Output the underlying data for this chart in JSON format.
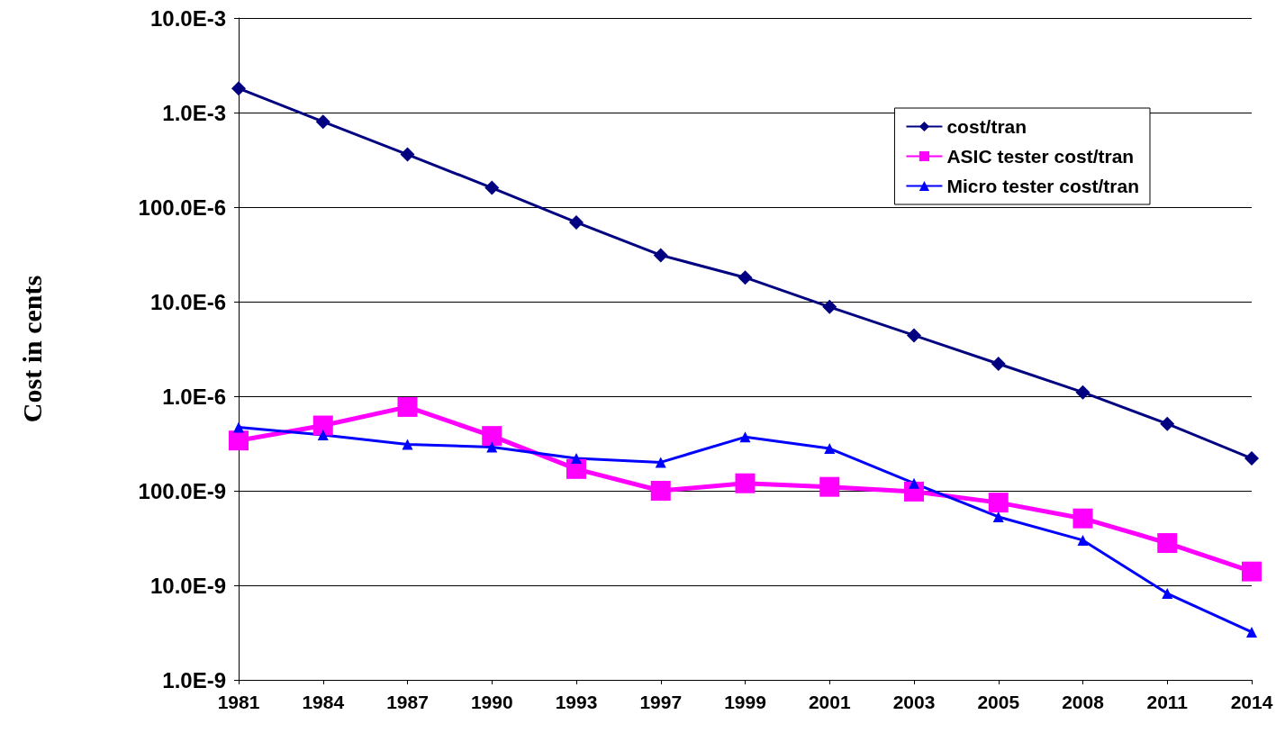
{
  "chart_data": {
    "type": "line",
    "ylabel": "Cost in cents",
    "log": "y",
    "grid": "y",
    "legend": "top right",
    "categories": [
      "1981",
      "1984",
      "1987",
      "1990",
      "1993",
      "1997",
      "1999",
      "2001",
      "2003",
      "2005",
      "2008",
      "2011",
      "2014"
    ],
    "ylim": [
      1e-09,
      0.01
    ],
    "yticks": [
      {
        "value": 1e-09,
        "label": "1.0E-9"
      },
      {
        "value": 1e-08,
        "label": "10.0E-9"
      },
      {
        "value": 1e-07,
        "label": "100.0E-9"
      },
      {
        "value": 1e-06,
        "label": "1.0E-6"
      },
      {
        "value": 1e-05,
        "label": "10.0E-6"
      },
      {
        "value": 0.0001,
        "label": "100.0E-6"
      },
      {
        "value": 0.001,
        "label": "1.0E-3"
      },
      {
        "value": 0.01,
        "label": "10.0E-3"
      }
    ],
    "series": [
      {
        "name": "cost/tran",
        "color": "#000080",
        "marker": "diamond",
        "values": [
          0.0018,
          0.0008,
          0.00036,
          0.00016,
          6.9e-05,
          3.1e-05,
          1.8e-05,
          8.8e-06,
          4.4e-06,
          2.2e-06,
          1.1e-06,
          5.1e-07,
          2.2e-07
        ]
      },
      {
        "name": "ASIC tester cost/tran",
        "color": "#ff00ff",
        "marker": "square",
        "values": [
          3.4e-07,
          4.9e-07,
          7.7e-07,
          3.8e-07,
          1.7e-07,
          1e-07,
          1.2e-07,
          1.1e-07,
          9.8e-08,
          7.5e-08,
          5.1e-08,
          2.8e-08,
          1.4e-08
        ]
      },
      {
        "name": "Micro tester cost/tran",
        "color": "#0000ff",
        "marker": "triangle",
        "values": [
          4.7e-07,
          3.9e-07,
          3.1e-07,
          2.9e-07,
          2.2e-07,
          2e-07,
          3.7e-07,
          2.8e-07,
          1.2e-07,
          5.3e-08,
          3e-08,
          8.2e-09,
          3.2e-09
        ]
      }
    ]
  }
}
